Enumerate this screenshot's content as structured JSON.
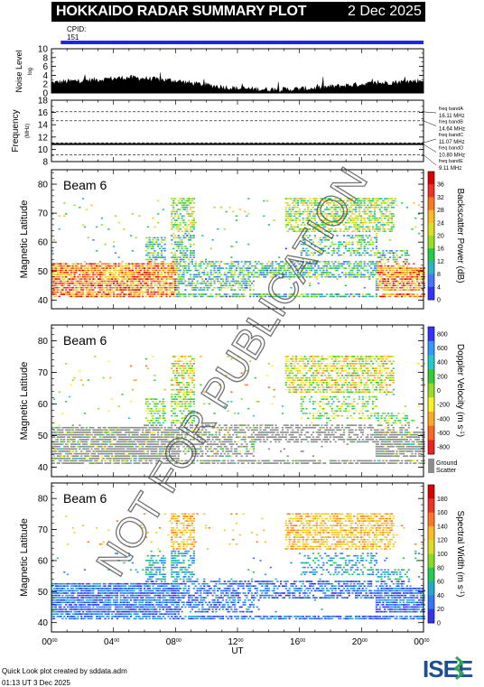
{
  "header": {
    "title": "HOKKAIDO RADAR SUMMARY PLOT",
    "date": "2 Dec 2025",
    "cpid_label": "CPID:",
    "cpid_value": "151"
  },
  "colors": {
    "cpid_bar": "#2222ee",
    "ground_scatter": "#8c8c8c"
  },
  "chart_data": [
    {
      "type": "area",
      "ylabel": "Noise Level",
      "ylabel_sub": "log",
      "ylim": [
        0,
        10
      ],
      "yticks": [
        0,
        2,
        4,
        6,
        8,
        10
      ],
      "x": [
        0,
        1,
        2,
        3,
        4,
        5,
        6,
        7,
        8,
        9,
        10,
        11,
        12,
        13,
        14,
        15,
        16,
        17,
        18,
        19,
        20,
        21,
        22,
        23,
        24
      ],
      "values": [
        2.3,
        2.6,
        2.8,
        3.0,
        3.3,
        3.5,
        3.3,
        3.0,
        2.8,
        2.2,
        1.8,
        1.4,
        1.0,
        0.9,
        0.8,
        0.8,
        0.9,
        1.1,
        1.4,
        1.7,
        2.0,
        2.2,
        2.4,
        2.6,
        2.8
      ]
    },
    {
      "type": "line",
      "ylabel": "Frequency",
      "yunit": "(MHz)",
      "ylim": [
        8,
        18
      ],
      "yticks": [
        8,
        10,
        12,
        14,
        16,
        18
      ],
      "x": [
        0,
        24
      ],
      "series": [
        {
          "values": [
            10.8,
            10.8
          ]
        },
        {
          "values": [
            10.9,
            10.9
          ]
        }
      ],
      "freq_bands": [
        {
          "label": "freq bandA",
          "value": "16.11 MHz",
          "mhz": 16.11
        },
        {
          "label": "freq bandB",
          "value": "14.64 MHz",
          "mhz": 14.64
        },
        {
          "label": "freq bandC",
          "value": "11.07 MHz",
          "mhz": 11.07
        },
        {
          "label": "freq bandD",
          "value": "10.80 MHz",
          "mhz": 10.8
        },
        {
          "label": "freq bandE",
          "value": "9.11 MHz",
          "mhz": 9.11
        }
      ]
    },
    {
      "type": "heatmap",
      "beam_label": "Beam  6",
      "ylabel": "Magnetic Latitude",
      "ylim": [
        37,
        85
      ],
      "yticks": [
        40,
        50,
        60,
        70,
        80
      ],
      "colorbar_label": "Backscatter Power (dB)",
      "colorbar_ticks": [
        "0",
        "4",
        "8",
        "12",
        "16",
        "20",
        "24",
        "28",
        "32",
        "36"
      ],
      "colorscale": [
        "#3333ff",
        "#4477ff",
        "#2bb4c8",
        "#22cc44",
        "#99dd22",
        "#dddd22",
        "#ffbb22",
        "#ff7722",
        "#ee3322",
        "#dd0000"
      ]
    },
    {
      "type": "heatmap",
      "beam_label": "Beam  6",
      "ylabel": "Magnetic Latitude",
      "ylim": [
        37,
        85
      ],
      "yticks": [
        40,
        50,
        60,
        70,
        80
      ],
      "colorbar_label": "Doppler Velocity (m s",
      "colorbar_label_sup": "-1",
      "colorbar_label_end": ")",
      "colorbar_ticks": [
        "800",
        "600",
        "400",
        "200",
        "0",
        "-200",
        "-400",
        "-600",
        "-800"
      ],
      "colorscale": [
        "#3333ff",
        "#3399ff",
        "#22cccc",
        "#33cc33",
        "#99dd22",
        "#ffee22",
        "#ffaa22",
        "#ff6622",
        "#ee2222"
      ],
      "ground_label": "Ground",
      "scatter_label": "Scatter"
    },
    {
      "type": "heatmap",
      "beam_label": "Beam  6",
      "ylabel": "Magnetic Latitude",
      "ylim": [
        37,
        85
      ],
      "yticks": [
        40,
        50,
        60,
        70,
        80
      ],
      "colorbar_label": "Spectral Width (m s",
      "colorbar_label_sup": "-1",
      "colorbar_label_end": ")",
      "colorbar_ticks": [
        "0",
        "20",
        "40",
        "60",
        "80",
        "100",
        "120",
        "140",
        "160",
        "180"
      ],
      "colorscale": [
        "#3333ee",
        "#3377ff",
        "#22aacc",
        "#22cc55",
        "#88dd22",
        "#dddd22",
        "#ffbb22",
        "#ff7722",
        "#ee3322",
        "#dd0000"
      ],
      "xlabel": "UT",
      "xticks": [
        "00",
        "04",
        "08",
        "12",
        "16",
        "20",
        "00"
      ],
      "xtick_sup": "00"
    }
  ],
  "footer": {
    "credit": "Quick Look plot created by sddata.adm",
    "timestamp": "01:13 UT  3 Dec 2025"
  },
  "logo": {
    "text": "ISEE"
  },
  "watermark": "NOT FOR PUBLICATION"
}
